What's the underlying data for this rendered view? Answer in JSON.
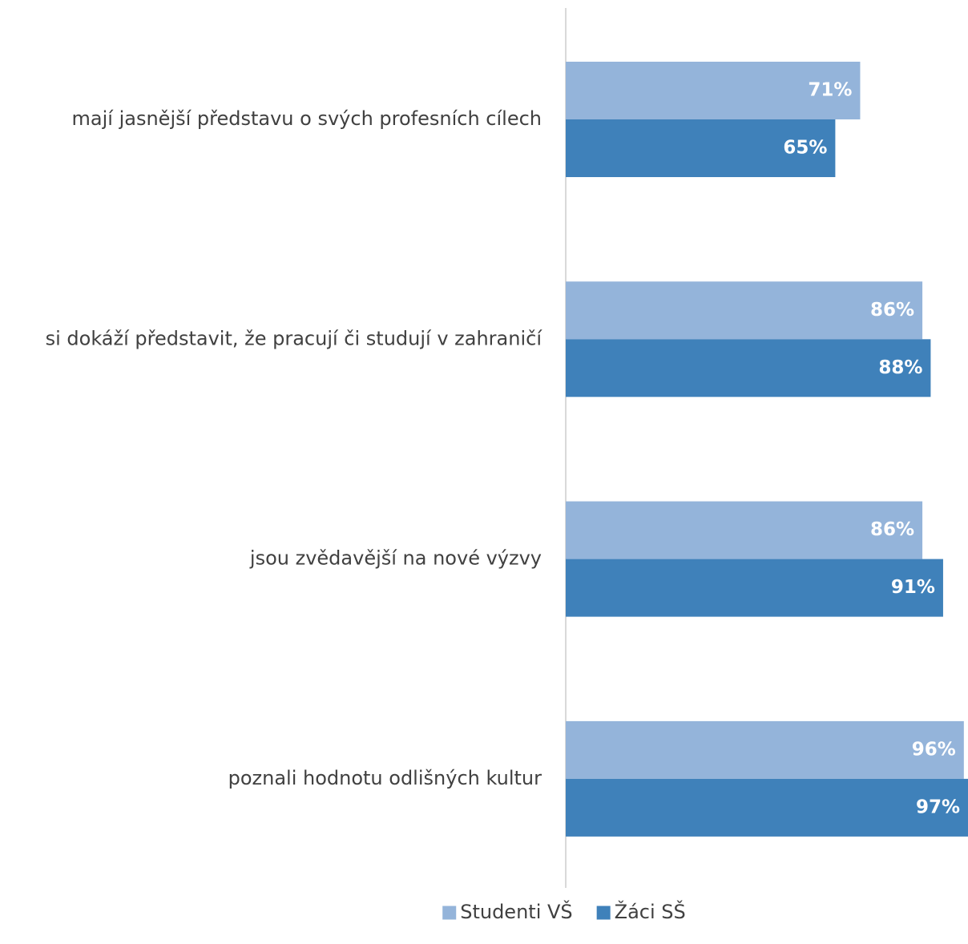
{
  "chart_data": {
    "type": "bar",
    "orientation": "horizontal",
    "title": "",
    "xlabel": "",
    "ylabel": "",
    "xlim": [
      0,
      97
    ],
    "grid": false,
    "legend_position": "bottom",
    "categories": [
      "mají jasnější představu o svých profesních cílech",
      "si dokáží představit, že pracují či studují v zahraničí",
      "jsou zvědavější na nové výzvy",
      "poznali hodnotu odlišných kultur"
    ],
    "series": [
      {
        "name": "Studenti VŠ",
        "color": "#94b4da",
        "values": [
          71,
          86,
          86,
          96
        ],
        "labels": [
          "71%",
          "86%",
          "86%",
          "96%"
        ]
      },
      {
        "name": "Žáci SŠ",
        "color": "#3f81ba",
        "values": [
          65,
          88,
          91,
          97
        ],
        "labels": [
          "65%",
          "88%",
          "91%",
          "97%"
        ]
      }
    ]
  }
}
